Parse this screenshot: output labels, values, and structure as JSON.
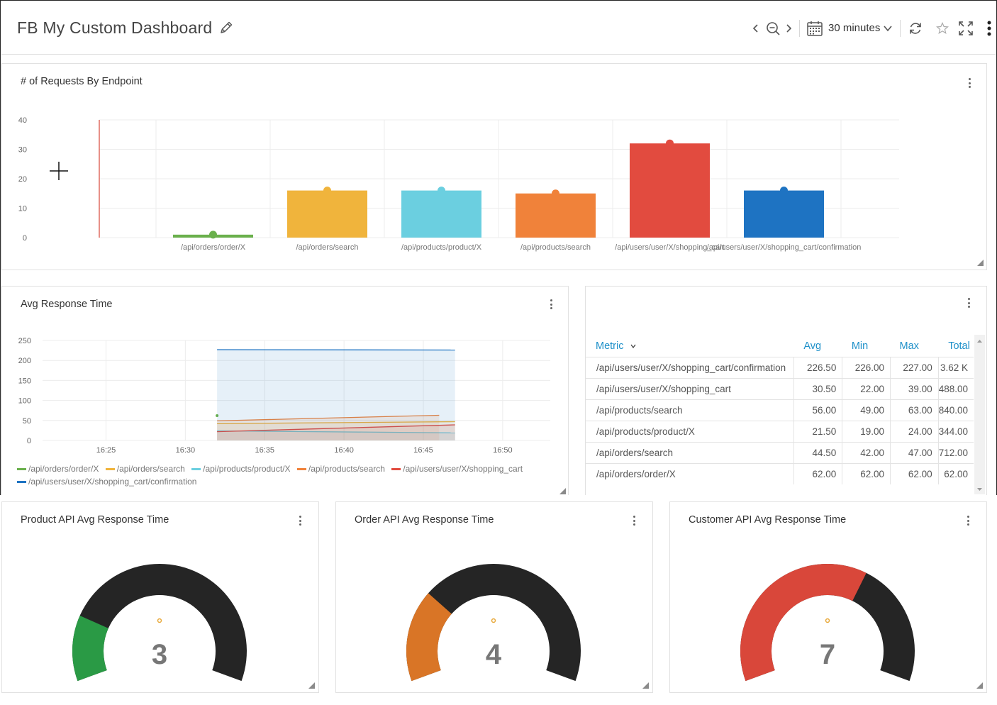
{
  "header": {
    "title": "FB My Custom Dashboard",
    "time_range": "30 minutes",
    "icons": [
      "pencil-icon",
      "chevron-left-icon",
      "zoom-out-icon",
      "chevron-right-icon",
      "calendar-icon",
      "chevron-down-icon",
      "refresh-icon",
      "star-icon",
      "fullscreen-icon",
      "more-vertical-icon"
    ]
  },
  "requests_panel": {
    "title": "# of Requests By Endpoint",
    "chart_data": {
      "type": "bar",
      "categories": [
        "/api/orders/order/X",
        "/api/orders/search",
        "/api/products/product/X",
        "/api/products/search",
        "/api/users/user/X/shopping_cart",
        "/api/users/user/X/shopping_cart/confirmation"
      ],
      "values": [
        1,
        16,
        16,
        15,
        32,
        16
      ],
      "colors": [
        "#6ab04c",
        "#f0b43c",
        "#6bcfe0",
        "#f0823a",
        "#e24b3f",
        "#1e73c2"
      ],
      "ylim": [
        0,
        40
      ],
      "yticks": [
        0,
        10,
        20,
        30,
        40
      ],
      "grid": true
    }
  },
  "avg_panel": {
    "title": "Avg Response Time",
    "chart_data": {
      "type": "line",
      "xticks": [
        "16:25",
        "16:30",
        "16:35",
        "16:40",
        "16:45",
        "16:50"
      ],
      "yticks": [
        0,
        50,
        100,
        150,
        200,
        250
      ],
      "ylim": [
        0,
        250
      ],
      "series": [
        {
          "name": "/api/orders/order/X",
          "color": "#6ab04c",
          "points": [
            [
              "16:32",
              62
            ]
          ]
        },
        {
          "name": "/api/orders/search",
          "color": "#f0b43c",
          "points": [
            [
              "16:32",
              42
            ],
            [
              "16:47",
              47
            ]
          ]
        },
        {
          "name": "/api/products/product/X",
          "color": "#6bcfe0",
          "points": [
            [
              "16:32",
              24
            ],
            [
              "16:47",
              19
            ]
          ]
        },
        {
          "name": "/api/products/search",
          "color": "#f0823a",
          "points": [
            [
              "16:32",
              49
            ],
            [
              "16:46",
              63
            ]
          ]
        },
        {
          "name": "/api/users/user/X/shopping_cart",
          "color": "#e24b3f",
          "points": [
            [
              "16:32",
              22
            ],
            [
              "16:47",
              39
            ]
          ]
        },
        {
          "name": "/api/users/user/X/shopping_cart/confirmation",
          "color": "#1e73c2",
          "points": [
            [
              "16:32",
              227
            ],
            [
              "16:47",
              226
            ]
          ]
        }
      ]
    }
  },
  "table_panel": {
    "columns": [
      "Metric",
      "Avg",
      "Min",
      "Max",
      "Total"
    ],
    "rows": [
      {
        "metric": "/api/users/user/X/shopping_cart/confirmation",
        "avg": "226.50",
        "min": "226.00",
        "max": "227.00",
        "total": "3.62 K"
      },
      {
        "metric": "/api/users/user/X/shopping_cart",
        "avg": "30.50",
        "min": "22.00",
        "max": "39.00",
        "total": "488.00"
      },
      {
        "metric": "/api/products/search",
        "avg": "56.00",
        "min": "49.00",
        "max": "63.00",
        "total": "840.00"
      },
      {
        "metric": "/api/products/product/X",
        "avg": "21.50",
        "min": "19.00",
        "max": "24.00",
        "total": "344.00"
      },
      {
        "metric": "/api/orders/search",
        "avg": "44.50",
        "min": "42.00",
        "max": "47.00",
        "total": "712.00"
      },
      {
        "metric": "/api/orders/order/X",
        "avg": "62.00",
        "min": "62.00",
        "max": "62.00",
        "total": "62.00"
      }
    ]
  },
  "gauges": [
    {
      "title": "Product API Avg Response Time",
      "value": "3",
      "fill": 0.2,
      "color": "#2a9a45"
    },
    {
      "title": "Order API Avg Response Time",
      "value": "4",
      "fill": 0.28,
      "color": "#d97526"
    },
    {
      "title": "Customer API Avg Response Time",
      "value": "7",
      "fill": 0.62,
      "color": "#d9473a"
    }
  ],
  "colors": {
    "track": "#252525",
    "accent": "#1e90c9"
  }
}
